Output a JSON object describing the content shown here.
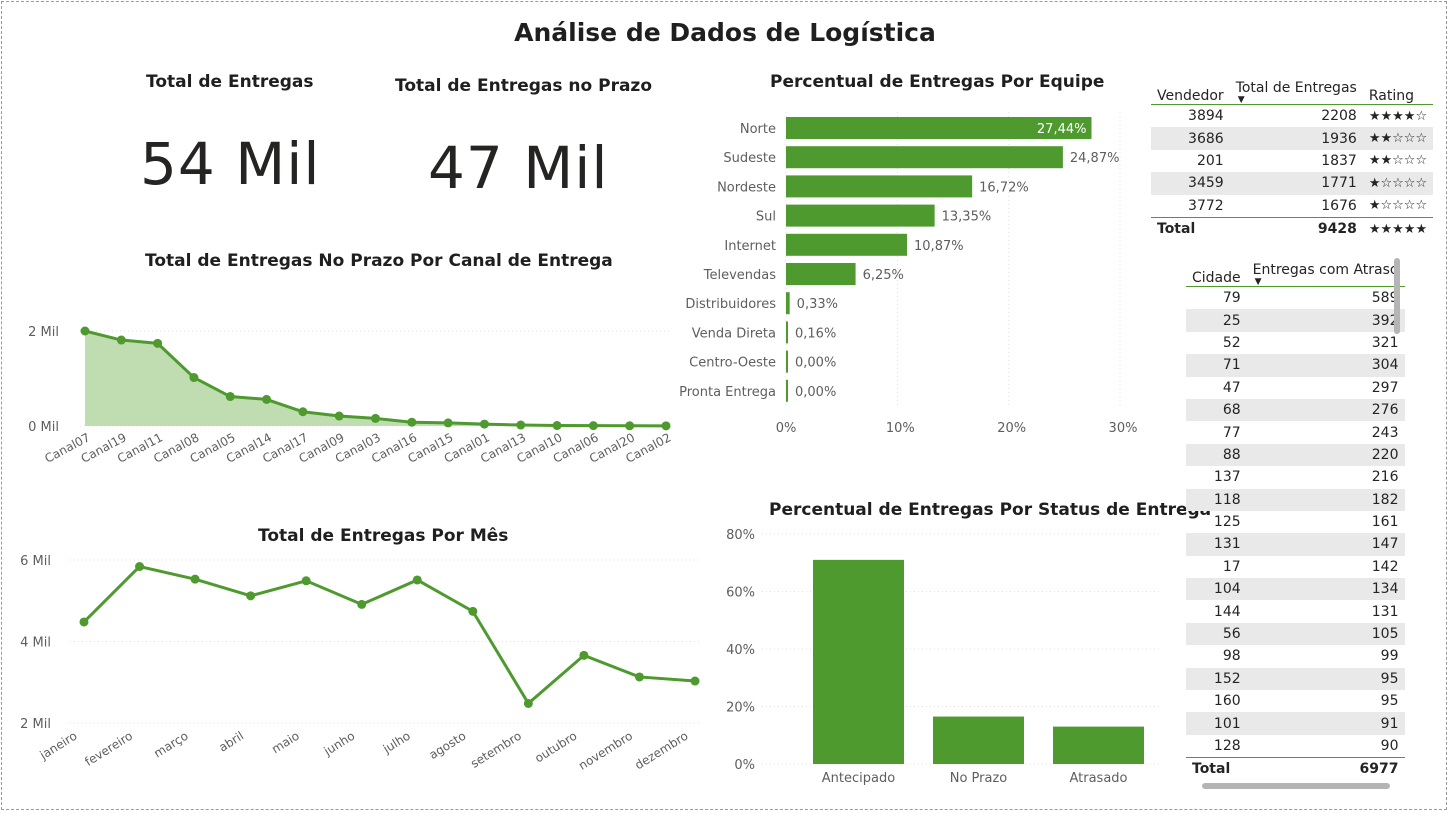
{
  "title": "Análise de Dados de Logística",
  "kpis": [
    {
      "label": "Total de Entregas",
      "value": "54 Mil"
    },
    {
      "label": "Total de Entregas no Prazo",
      "value": "47 Mil"
    }
  ],
  "colors": {
    "accent": "#4e9a2f",
    "area_fill": "#c0dcb1",
    "alt_row": "#e9e9e9"
  },
  "chart_data": [
    {
      "type": "area",
      "title": "Total de Entregas No Prazo Por Canal de Entrega",
      "categories": [
        "Canal07",
        "Canal19",
        "Canal11",
        "Canal08",
        "Canal05",
        "Canal14",
        "Canal17",
        "Canal09",
        "Canal03",
        "Canal16",
        "Canal15",
        "Canal01",
        "Canal13",
        "Canal10",
        "Canal06",
        "Canal20",
        "Canal02"
      ],
      "values": [
        2000,
        1810,
        1740,
        1020,
        620,
        560,
        300,
        210,
        160,
        80,
        65,
        40,
        20,
        10,
        8,
        5,
        3
      ],
      "ylim": [
        0,
        2000
      ],
      "yticks": [
        {
          "v": 0,
          "label": "0 Mil"
        },
        {
          "v": 2000,
          "label": "2 Mil"
        }
      ],
      "grid": true
    },
    {
      "type": "line",
      "title": "Total de Entregas Por Mês",
      "categories": [
        "janeiro",
        "fevereiro",
        "março",
        "abril",
        "maio",
        "junho",
        "julho",
        "agosto",
        "setembro",
        "outubro",
        "novembro",
        "dezembro"
      ],
      "values": [
        4480,
        5840,
        5530,
        5120,
        5490,
        4910,
        5510,
        4740,
        2480,
        3660,
        3130,
        3030
      ],
      "ylim": [
        2000,
        6000
      ],
      "yticks": [
        {
          "v": 2000,
          "label": "2 Mil"
        },
        {
          "v": 4000,
          "label": "4 Mil"
        },
        {
          "v": 6000,
          "label": "6 Mil"
        }
      ],
      "grid": true
    },
    {
      "type": "bar",
      "orientation": "horizontal",
      "title": "Percentual de Entregas Por Equipe",
      "categories": [
        "Norte",
        "Sudeste",
        "Nordeste",
        "Sul",
        "Internet",
        "Televendas",
        "Distribuidores",
        "Venda Direta",
        "Centro-Oeste",
        "Pronta Entrega"
      ],
      "values": [
        27.44,
        24.87,
        16.72,
        13.35,
        10.87,
        6.25,
        0.33,
        0.16,
        0.0,
        0.0
      ],
      "labels": [
        "27,44%",
        "24,87%",
        "16,72%",
        "13,35%",
        "10,87%",
        "6,25%",
        "0,33%",
        "0,16%",
        "0,00%",
        "0,00%"
      ],
      "xlim": [
        0,
        30
      ],
      "xticks": [
        {
          "v": 0,
          "label": "0%"
        },
        {
          "v": 10,
          "label": "10%"
        },
        {
          "v": 20,
          "label": "20%"
        },
        {
          "v": 30,
          "label": "30%"
        }
      ],
      "grid": true
    },
    {
      "type": "bar",
      "orientation": "vertical",
      "title": "Percentual de Entregas Por Status de Entrega",
      "categories": [
        "Antecipado",
        "No Prazo",
        "Atrasado"
      ],
      "values": [
        71,
        16.5,
        13
      ],
      "ylim": [
        0,
        80
      ],
      "yticks": [
        {
          "v": 0,
          "label": "0%"
        },
        {
          "v": 20,
          "label": "20%"
        },
        {
          "v": 40,
          "label": "40%"
        },
        {
          "v": 60,
          "label": "60%"
        },
        {
          "v": 80,
          "label": "80%"
        }
      ],
      "grid": true
    }
  ],
  "vendor_table": {
    "headers": [
      "Vendedor",
      "Total de Entregas",
      "Rating"
    ],
    "rows": [
      {
        "vendedor": "3894",
        "total": "2208",
        "rating": "★★★★☆"
      },
      {
        "vendedor": "3686",
        "total": "1936",
        "rating": "★★☆☆☆"
      },
      {
        "vendedor": "201",
        "total": "1837",
        "rating": "★★☆☆☆"
      },
      {
        "vendedor": "3459",
        "total": "1771",
        "rating": "★☆☆☆☆"
      },
      {
        "vendedor": "3772",
        "total": "1676",
        "rating": "★☆☆☆☆"
      }
    ],
    "total_row": {
      "label": "Total",
      "total": "9428",
      "rating": "★★★★★"
    }
  },
  "city_table": {
    "headers": [
      "Cidade",
      "Entregas com Atraso"
    ],
    "rows": [
      [
        "79",
        "589"
      ],
      [
        "25",
        "392"
      ],
      [
        "52",
        "321"
      ],
      [
        "71",
        "304"
      ],
      [
        "47",
        "297"
      ],
      [
        "68",
        "276"
      ],
      [
        "77",
        "243"
      ],
      [
        "88",
        "220"
      ],
      [
        "137",
        "216"
      ],
      [
        "118",
        "182"
      ],
      [
        "125",
        "161"
      ],
      [
        "131",
        "147"
      ],
      [
        "17",
        "142"
      ],
      [
        "104",
        "134"
      ],
      [
        "144",
        "131"
      ],
      [
        "56",
        "105"
      ],
      [
        "98",
        "99"
      ],
      [
        "152",
        "95"
      ],
      [
        "160",
        "95"
      ],
      [
        "101",
        "91"
      ],
      [
        "128",
        "90"
      ]
    ],
    "total_row": {
      "label": "Total",
      "value": "6977"
    }
  }
}
